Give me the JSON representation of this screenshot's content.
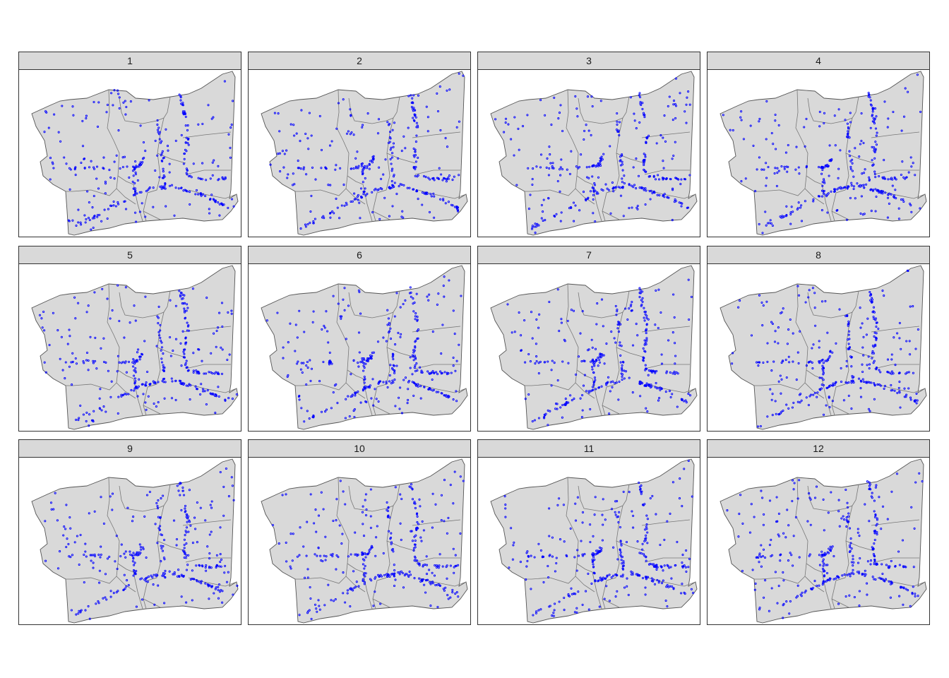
{
  "facets": [
    {
      "label": "1"
    },
    {
      "label": "2"
    },
    {
      "label": "3"
    },
    {
      "label": "4"
    },
    {
      "label": "5"
    },
    {
      "label": "6"
    },
    {
      "label": "7"
    },
    {
      "label": "8"
    },
    {
      "label": "9"
    },
    {
      "label": "10"
    },
    {
      "label": "11"
    },
    {
      "label": "12"
    }
  ],
  "colors": {
    "points": "#0000ff",
    "region_fill": "#d9d9d9",
    "region_border": "#555555",
    "strip_fill": "#d9d9d9"
  },
  "icons": {
    "point_marker": "open-circle"
  }
}
